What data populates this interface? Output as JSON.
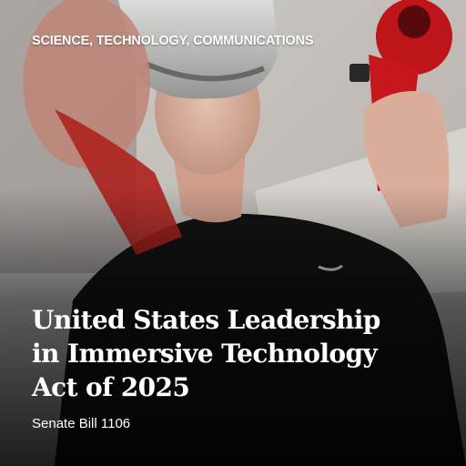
{
  "card": {
    "category": "SCIENCE, TECHNOLOGY, COMMUNICATIONS",
    "title_lines": [
      "United States Leadership",
      "in Immersive Technology",
      "Act of 2025"
    ],
    "bill": "Senate Bill 1106"
  },
  "colors": {
    "text": "#ffffff",
    "controller_red": "#c8161c",
    "sweater": "#161616",
    "ceiling": "#cfcac6"
  },
  "image_subject": "person-wearing-vr-headset-holding-red-controllers"
}
